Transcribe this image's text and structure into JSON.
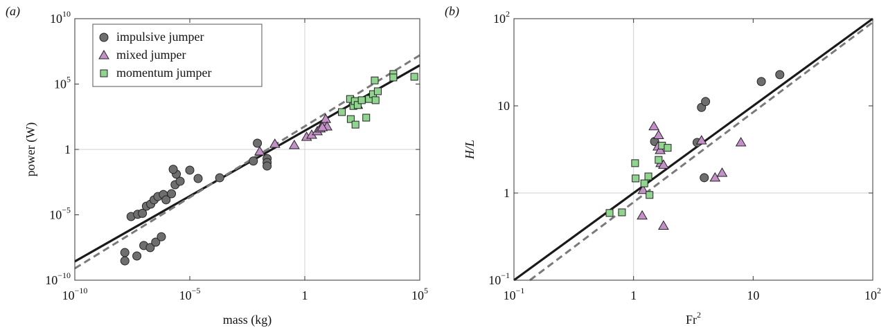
{
  "chart_data": [
    {
      "type": "scatter",
      "panel_label": "(a)",
      "xlabel": "mass (kg)",
      "ylabel": "power (W)",
      "log_x": true,
      "log_y": true,
      "xlim": [
        1e-10,
        100000
      ],
      "ylim": [
        1e-10,
        10000000000
      ],
      "xticks": [
        {
          "value": 1e-10,
          "label": "10",
          "sup": "−10"
        },
        {
          "value": 1e-05,
          "label": "10",
          "sup": "−5"
        },
        1,
        {
          "value": 100000,
          "label": "10",
          "sup": "5"
        }
      ],
      "yticks": [
        {
          "value": 1e-10,
          "label": "10",
          "sup": "−10"
        },
        {
          "value": 1e-05,
          "label": "10",
          "sup": "−5"
        },
        1,
        {
          "value": 100000,
          "label": "10",
          "sup": "5"
        },
        {
          "value": 10000000000,
          "label": "10",
          "sup": "10"
        }
      ],
      "grid_x": [
        1
      ],
      "grid_y": [
        1
      ],
      "legend": "upper left",
      "series": [
        {
          "name": "impulsive jumper",
          "marker": "circle",
          "color": "#6e6e6e",
          "x": [
            1.5e-08,
            1.5e-08,
            5e-08,
            1e-07,
            1.9e-07,
            3.3e-07,
            5.8e-07,
            2.8e-08,
            5.4e-08,
            8.7e-08,
            1.3e-07,
            2e-07,
            2.8e-07,
            4.1e-07,
            7.1e-07,
            9.3e-07,
            1.6e-06,
            2.3e-06,
            3.8e-06,
            2.6e-06,
            1.9e-06,
            1e-05,
            2.3e-05,
            0.0002,
            0.0058,
            0.0087,
            0.023,
            0.023,
            0.023
          ],
          "values": [
            1.3e-08,
            3e-09,
            7.1e-09,
            4.5e-08,
            3.1e-08,
            8.1e-08,
            2.1e-07,
            7.4e-06,
            1.1e-05,
            1.3e-05,
            4.6e-05,
            6.6e-05,
            0.00014,
            0.00025,
            0.00036,
            0.00014,
            0.00041,
            0.002,
            0.0037,
            0.013,
            0.03,
            0.026,
            0.006,
            0.0068,
            0.13,
            3.0,
            0.2,
            0.1,
            0.054
          ]
        },
        {
          "name": "mixed jumper",
          "marker": "triangle",
          "color": "#c490c8",
          "x": [
            0.011,
            0.05,
            0.35,
            1.2,
            2,
            3.5,
            4.7,
            6.6,
            8.1,
            9.3,
            5.8,
            130,
            200
          ],
          "values": [
            0.69,
            2.6,
            2.1,
            8.9,
            13,
            24,
            39,
            100,
            210,
            56,
            49,
            4500,
            2500
          ]
        },
        {
          "name": "momentum jumper",
          "marker": "square",
          "color": "#90d490",
          "x": [
            41,
            93,
            130,
            150,
            200,
            100,
            160,
            300,
            470,
            620,
            930,
            1200,
            1500,
            1100,
            7100,
            7100,
            58000
          ],
          "values": [
            720,
            7200,
            2100,
            5000,
            2500,
            210,
            79,
            5800,
            270,
            7200,
            17000,
            5800,
            28000,
            190000,
            590000,
            320000,
            360000
          ]
        }
      ],
      "fit_lines": [
        {
          "color": "#1a1a1a",
          "dashed": false,
          "x": [
            1e-10,
            100000
          ],
          "values": [
            2.7e-09,
            2700000
          ]
        },
        {
          "color": "#7a7a7a",
          "dashed": true,
          "x": [
            1e-10,
            100000
          ],
          "values": [
            7.9e-10,
            16000000
          ]
        }
      ]
    },
    {
      "type": "scatter",
      "panel_label": "(b)",
      "xlabel": "Fr",
      "xlabel_sup": "2",
      "ylabel": "H/L",
      "log_x": true,
      "log_y": true,
      "xlim": [
        0.1,
        100
      ],
      "ylim": [
        0.1,
        100
      ],
      "xticks": [
        {
          "value": 0.1,
          "label": "10",
          "sup": "−1"
        },
        1,
        10,
        {
          "value": 100,
          "label": "10",
          "sup": "2"
        }
      ],
      "yticks": [
        {
          "value": 0.1,
          "label": "10",
          "sup": "−1"
        },
        1,
        10,
        {
          "value": 100,
          "label": "10",
          "sup": "2"
        }
      ],
      "grid_x": [
        1
      ],
      "grid_y": [
        1
      ],
      "series": [
        {
          "marker": "circle",
          "color": "#6e6e6e",
          "x": [
            11.7,
            16.7,
            3.7,
            4.0,
            3.4,
            3.9,
            1.5
          ],
          "values": [
            19,
            22.8,
            9.6,
            11.2,
            3.8,
            1.5,
            3.9
          ]
        },
        {
          "marker": "triangle",
          "color": "#c490c8",
          "x": [
            1.48,
            1.62,
            1.6,
            1.67,
            1.69,
            1.78,
            3.7,
            7.9,
            5.5,
            4.8,
            1.2,
            1.18,
            1.78
          ],
          "values": [
            5.8,
            4.6,
            3.4,
            3.1,
            2.2,
            2.1,
            4.0,
            3.8,
            1.7,
            1.5,
            1.08,
            0.55,
            0.42
          ]
        },
        {
          "marker": "square",
          "color": "#90d490",
          "x": [
            0.63,
            0.8,
            1.03,
            1.04,
            1.23,
            1.33,
            1.36,
            1.62,
            1.73,
            1.93
          ],
          "values": [
            0.59,
            0.6,
            2.2,
            1.47,
            1.29,
            1.55,
            0.95,
            2.4,
            3.5,
            3.3
          ]
        }
      ],
      "fit_lines": [
        {
          "color": "#1a1a1a",
          "dashed": false,
          "x": [
            0.1,
            100
          ],
          "values": [
            0.1,
            100
          ]
        },
        {
          "color": "#7a7a7a",
          "dashed": true,
          "x": [
            0.136,
            100
          ],
          "values": [
            0.1,
            91
          ]
        }
      ]
    }
  ]
}
